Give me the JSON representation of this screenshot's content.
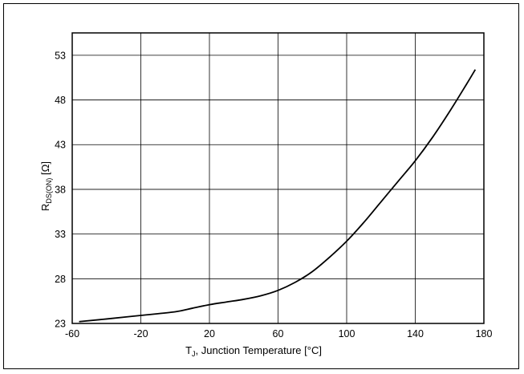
{
  "chart_data": {
    "type": "line",
    "xlabel": {
      "main": "T",
      "sub": "J",
      "rest": ", Junction Temperature [°C]"
    },
    "ylabel": {
      "main": "R",
      "sub": "DS(ON)",
      "rest": " [Ω]"
    },
    "xlim": [
      -60,
      180
    ],
    "ylim": [
      23,
      55.5
    ],
    "xticks": [
      -60,
      -20,
      20,
      60,
      100,
      140,
      180
    ],
    "yticks": [
      23,
      28,
      33,
      38,
      43,
      48,
      53
    ],
    "grid": true,
    "series": [
      {
        "x": [
          -56,
          -40,
          -20,
          0,
          10,
          20,
          30,
          40,
          50,
          60,
          70,
          80,
          90,
          100,
          110,
          120,
          130,
          140,
          150,
          160,
          170,
          175
        ],
        "y": [
          23.2,
          23.5,
          23.9,
          24.3,
          24.7,
          25.1,
          25.4,
          25.7,
          26.1,
          26.7,
          27.6,
          28.8,
          30.4,
          32.2,
          34.3,
          36.6,
          38.9,
          41.2,
          43.8,
          46.7,
          49.8,
          51.4
        ],
        "color": "#000000"
      }
    ]
  }
}
